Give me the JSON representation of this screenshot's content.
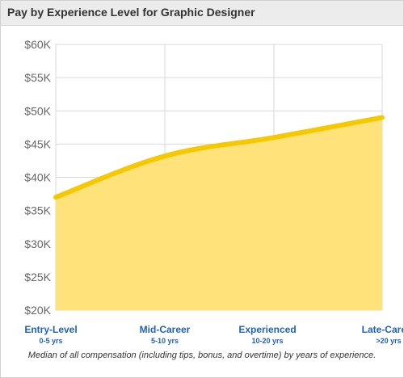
{
  "chart_data": {
    "type": "area",
    "title": "Pay by Experience Level for Graphic Designer",
    "caption": "Median of all compensation (including tips, bonus, and overtime) by years of experience.",
    "categories": [
      "Entry-Level",
      "Mid-Career",
      "Experienced",
      "Late-Career"
    ],
    "category_sublabels": [
      "0-5 yrs",
      "5-10 yrs",
      "10-20 yrs",
      ">20 yrs"
    ],
    "values": [
      37000,
      43200,
      46000,
      49000
    ],
    "ylim": [
      20000,
      60000
    ],
    "yticks": [
      20000,
      25000,
      30000,
      35000,
      40000,
      45000,
      50000,
      55000,
      60000
    ],
    "ytick_labels": [
      "$20K",
      "$25K",
      "$30K",
      "$35K",
      "$40K",
      "$45K",
      "$50K",
      "$55K",
      "$60K"
    ],
    "grid": true,
    "colors": {
      "fill": "#ffe27a",
      "line": "#f5c800",
      "grid": "#d9d9d9",
      "category_text": "#1f62b6"
    }
  }
}
